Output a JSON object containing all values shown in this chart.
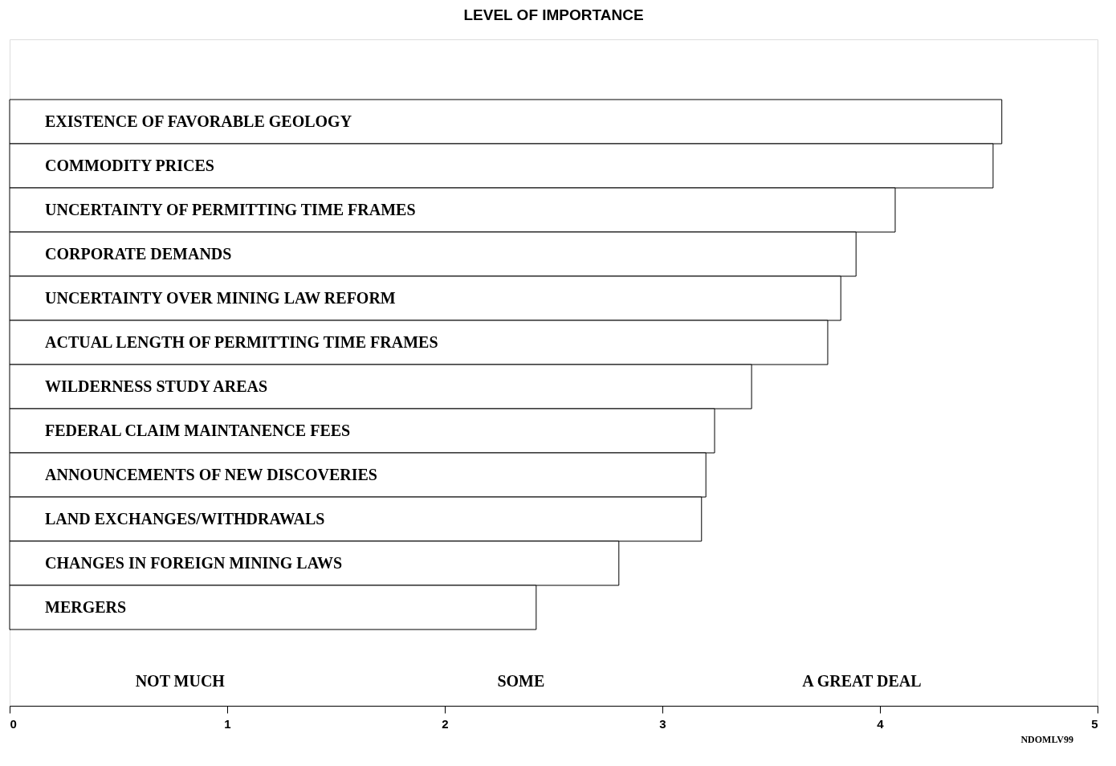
{
  "chart_data": {
    "type": "bar",
    "orientation": "horizontal",
    "title": "LEVEL OF IMPORTANCE",
    "categories": [
      "EXISTENCE OF FAVORABLE GEOLOGY",
      "COMMODITY PRICES",
      "UNCERTAINTY OF PERMITTING TIME FRAMES",
      "CORPORATE DEMANDS",
      "UNCERTAINTY OVER MINING LAW REFORM",
      "ACTUAL LENGTH OF PERMITTING TIME FRAMES",
      "WILDERNESS STUDY AREAS",
      "FEDERAL CLAIM MAINTANENCE FEES",
      "ANNOUNCEMENTS OF NEW DISCOVERIES",
      "LAND EXCHANGES/WITHDRAWALS",
      "CHANGES IN FOREIGN MINING LAWS",
      "MERGERS"
    ],
    "values": [
      4.56,
      4.52,
      4.07,
      3.89,
      3.82,
      3.76,
      3.41,
      3.24,
      3.2,
      3.18,
      2.8,
      2.42
    ],
    "color": "#ffffff",
    "xlim": [
      0,
      5
    ],
    "xticks": [
      0,
      1,
      2,
      3,
      4,
      5
    ],
    "grid": false,
    "annotations": [
      "NOT MUCH",
      "SOME",
      "A GREAT DEAL",
      "NDOMLV99"
    ]
  }
}
